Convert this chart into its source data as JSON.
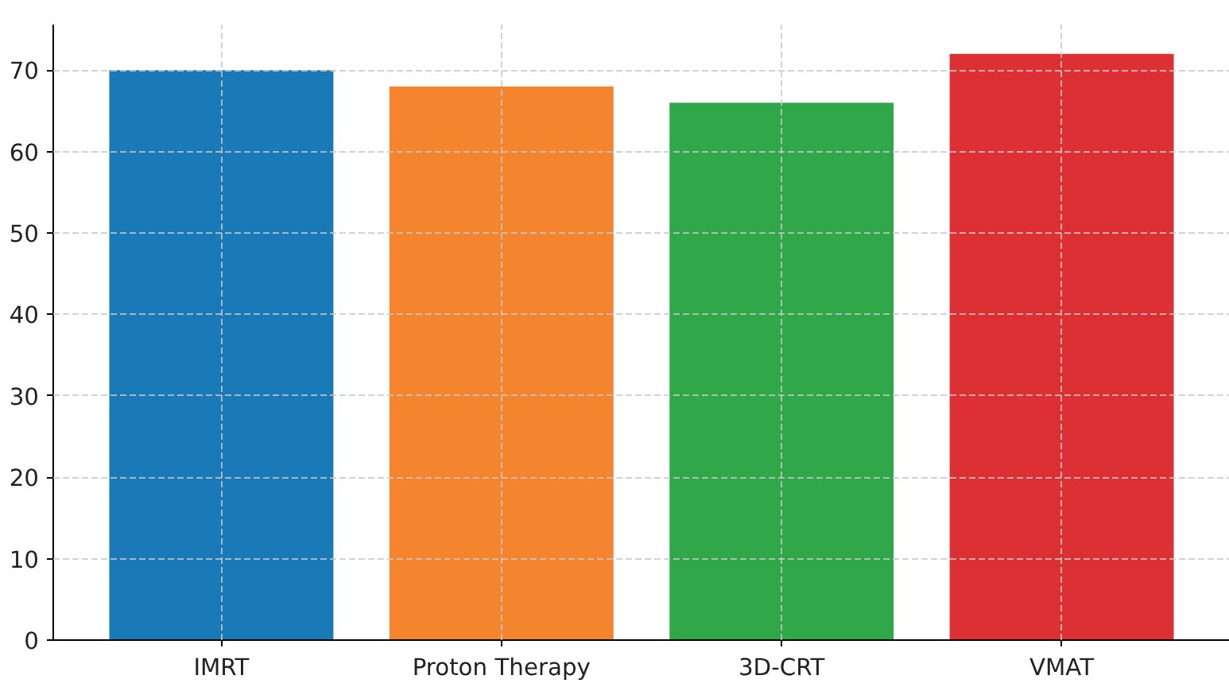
{
  "chart_data": {
    "type": "bar",
    "categories": [
      "IMRT",
      "Proton Therapy",
      "3D-CRT",
      "VMAT"
    ],
    "values": [
      70,
      68,
      66,
      72
    ],
    "colors": [
      "#1a7ab8",
      "#f5842f",
      "#30a84a",
      "#dc3035"
    ],
    "ylim": [
      0,
      75.6
    ],
    "yticks": [
      0,
      10,
      20,
      30,
      40,
      50,
      60,
      70
    ],
    "grid": true
  }
}
